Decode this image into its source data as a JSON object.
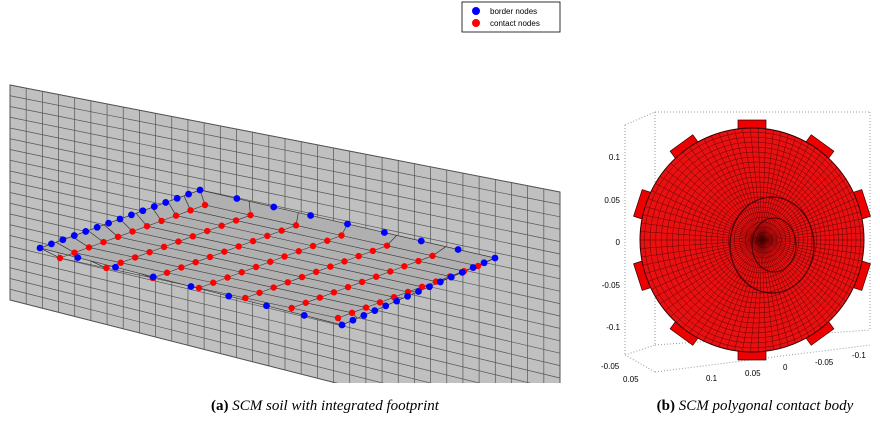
{
  "legend": {
    "items": [
      "border nodes",
      "contact nodes"
    ]
  },
  "figure_a": {
    "caption_label": "(a)",
    "caption": "SCM soil with integrated footprint"
  },
  "figure_b": {
    "caption_label": "(b)",
    "caption": "SCM polygonal contact body",
    "z_ticks": [
      "0.1",
      "0.05",
      "0",
      "-0.05",
      "-0.1"
    ],
    "y_ticks": [
      "-0.05",
      "0.05"
    ],
    "x_ticks": [
      "0.1",
      "0.05",
      "0",
      "-0.05",
      "-0.1"
    ]
  }
}
